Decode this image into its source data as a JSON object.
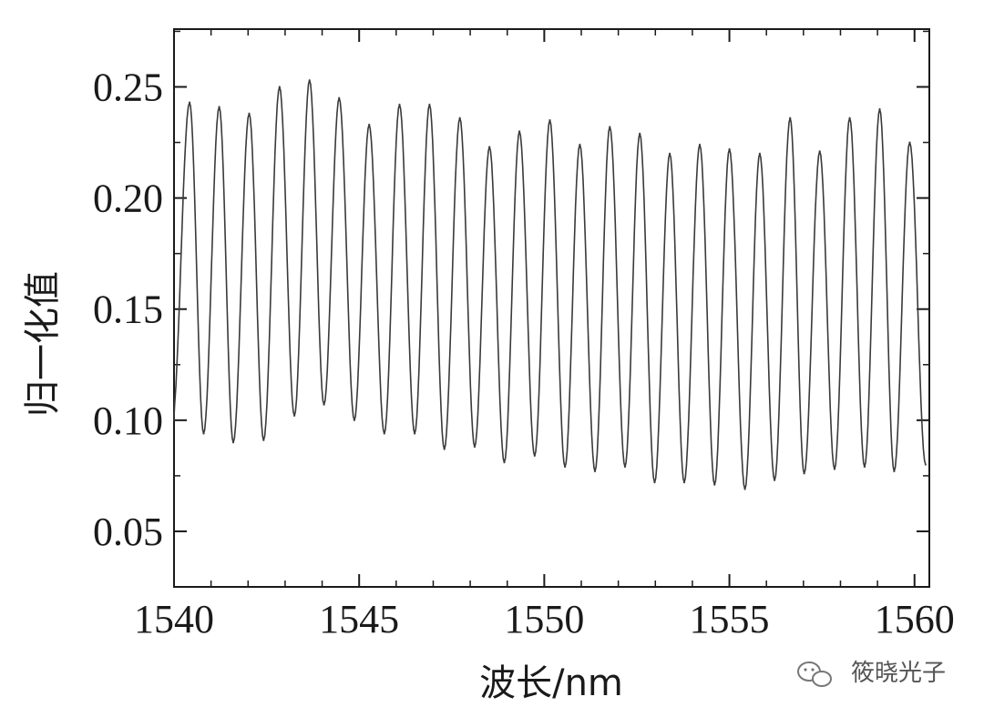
{
  "chart_data": {
    "type": "line",
    "title": "",
    "xlabel": "波长/nm",
    "ylabel": "归一化值",
    "xlim": [
      1540,
      1560.4
    ],
    "ylim": [
      0.025,
      0.276
    ],
    "x_ticks": [
      "1540",
      "1545",
      "1550",
      "1555",
      "1560"
    ],
    "y_ticks": [
      "0.05",
      "0.10",
      "0.15",
      "0.20",
      "0.25"
    ],
    "grid": false,
    "legend": "none",
    "line_color": "#3a3a3a",
    "series": [
      {
        "peaks_x": [
          1540.42,
          1541.22,
          1542.03,
          1542.85,
          1543.66,
          1544.46,
          1545.27,
          1546.09,
          1546.9,
          1547.72,
          1548.52,
          1549.33,
          1550.15,
          1550.96,
          1551.77,
          1552.58,
          1553.39,
          1554.2,
          1555.0,
          1555.82,
          1556.64,
          1557.44,
          1558.25,
          1559.06,
          1559.87
        ],
        "peaks_y": [
          0.243,
          0.241,
          0.238,
          0.25,
          0.253,
          0.245,
          0.233,
          0.242,
          0.242,
          0.236,
          0.223,
          0.23,
          0.235,
          0.224,
          0.232,
          0.229,
          0.22,
          0.224,
          0.222,
          0.22,
          0.236,
          0.221,
          0.236,
          0.24,
          0.225
        ],
        "troughs_x": [
          1539.95,
          1540.8,
          1541.6,
          1542.42,
          1543.25,
          1544.05,
          1544.87,
          1545.68,
          1546.5,
          1547.3,
          1548.12,
          1548.92,
          1549.74,
          1550.56,
          1551.37,
          1552.18,
          1552.98,
          1553.78,
          1554.6,
          1555.42,
          1556.22,
          1557.02,
          1557.84,
          1558.65,
          1559.45,
          1560.3
        ],
        "troughs_y": [
          0.1,
          0.094,
          0.09,
          0.091,
          0.102,
          0.107,
          0.1,
          0.094,
          0.094,
          0.087,
          0.088,
          0.081,
          0.084,
          0.079,
          0.077,
          0.079,
          0.072,
          0.072,
          0.071,
          0.069,
          0.073,
          0.076,
          0.078,
          0.079,
          0.077,
          0.08
        ]
      }
    ]
  },
  "watermark": {
    "icon": "wechat-icon",
    "text": "筱晓光子"
  }
}
